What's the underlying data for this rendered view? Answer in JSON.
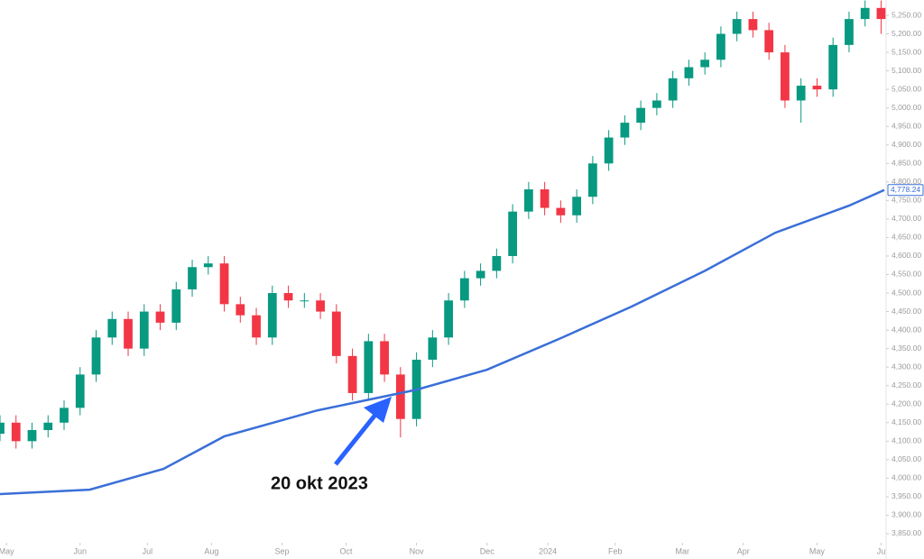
{
  "chart_data": {
    "type": "candlestick",
    "x": [
      0,
      5,
      10,
      15,
      20,
      25,
      30,
      35,
      40,
      45,
      50,
      55,
      60,
      65,
      70,
      75,
      80,
      85,
      90,
      95,
      100,
      105,
      110,
      115,
      120,
      125,
      130,
      135,
      140,
      145,
      150,
      155,
      160,
      165,
      170,
      175,
      180,
      185,
      190,
      195,
      200,
      205,
      210,
      215,
      220,
      225,
      230,
      235,
      240,
      245,
      250,
      255,
      260,
      265,
      270,
      275
    ],
    "open": [
      4120,
      4150,
      4100,
      4130,
      4150,
      4190,
      4280,
      4380,
      4430,
      4350,
      4450,
      4420,
      4510,
      4570,
      4580,
      4470,
      4440,
      4380,
      4500,
      4480,
      4480,
      4450,
      4330,
      4230,
      4370,
      4280,
      4160,
      4320,
      4380,
      4480,
      4540,
      4560,
      4600,
      4720,
      4780,
      4730,
      4710,
      4760,
      4850,
      4920,
      4960,
      5000,
      5020,
      5080,
      5110,
      5130,
      5200,
      5240,
      5210,
      5150,
      5020,
      5060,
      5050,
      5170,
      5240,
      5270
    ],
    "high": [
      4170,
      4170,
      4150,
      4170,
      4210,
      4300,
      4400,
      4450,
      4450,
      4470,
      4470,
      4530,
      4590,
      4600,
      4600,
      4490,
      4460,
      4520,
      4520,
      4500,
      4500,
      4470,
      4350,
      4390,
      4390,
      4300,
      4340,
      4400,
      4500,
      4560,
      4580,
      4620,
      4740,
      4800,
      4800,
      4750,
      4780,
      4870,
      4940,
      4980,
      5020,
      5040,
      5100,
      5130,
      5150,
      5220,
      5260,
      5260,
      5230,
      5170,
      5080,
      5080,
      5190,
      5260,
      5290,
      5290
    ],
    "low": [
      4100,
      4080,
      4080,
      4110,
      4130,
      4170,
      4260,
      4360,
      4330,
      4330,
      4400,
      4400,
      4490,
      4550,
      4450,
      4420,
      4360,
      4360,
      4460,
      4460,
      4430,
      4310,
      4210,
      4210,
      4260,
      4110,
      4140,
      4300,
      4360,
      4460,
      4520,
      4540,
      4580,
      4700,
      4710,
      4690,
      4690,
      4740,
      4830,
      4900,
      4940,
      4980,
      5000,
      5060,
      5090,
      5110,
      5180,
      5190,
      5130,
      5000,
      4960,
      5030,
      5030,
      5150,
      5220,
      5200
    ],
    "close": [
      4150,
      4100,
      4130,
      4150,
      4190,
      4280,
      4380,
      4430,
      4350,
      4450,
      4420,
      4510,
      4570,
      4580,
      4470,
      4440,
      4380,
      4500,
      4480,
      4480,
      4450,
      4330,
      4230,
      4370,
      4280,
      4160,
      4320,
      4380,
      4480,
      4540,
      4560,
      4600,
      4720,
      4780,
      4730,
      4710,
      4760,
      4850,
      4920,
      4960,
      5000,
      5020,
      5080,
      5110,
      5130,
      5200,
      5240,
      5210,
      5150,
      5020,
      5060,
      5050,
      5170,
      5240,
      5270,
      5240
    ],
    "up_color": "#089981",
    "down_color": "#f23645",
    "ma": {
      "color": "#3a6fd8",
      "x": [
        0,
        28,
        51,
        70,
        99,
        130,
        152,
        175,
        197,
        220,
        242,
        265,
        276
      ],
      "values": [
        3957,
        3969,
        4025,
        4113,
        4183,
        4239,
        4293,
        4378,
        4463,
        4560,
        4663,
        4736,
        4778.24
      ]
    },
    "last_value": {
      "value": 4778.24,
      "label": "4,778.24"
    },
    "annotation": "20 okt 2023",
    "xlim": [
      0,
      276
    ],
    "xticks": [
      {
        "value": 2,
        "label": "May"
      },
      {
        "value": 25,
        "label": "Jun"
      },
      {
        "value": 46,
        "label": "Jul"
      },
      {
        "value": 66,
        "label": "Aug"
      },
      {
        "value": 88,
        "label": "Sep"
      },
      {
        "value": 108,
        "label": "Oct"
      },
      {
        "value": 130,
        "label": "Nov"
      },
      {
        "value": 152,
        "label": "Dec"
      },
      {
        "value": 171,
        "label": "2024"
      },
      {
        "value": 192,
        "label": "Feb"
      },
      {
        "value": 213,
        "label": "Mar"
      },
      {
        "value": 232,
        "label": "Apr"
      },
      {
        "value": 255,
        "label": "May"
      },
      {
        "value": 275,
        "label": "Ju"
      }
    ],
    "ylim": [
      3830.5,
      5291.4
    ],
    "yticks": [
      {
        "value": 3850,
        "label": "3,850.00"
      },
      {
        "value": 3900,
        "label": "3,900.00"
      },
      {
        "value": 3950,
        "label": "3,950.00"
      },
      {
        "value": 4000,
        "label": "4,000.00"
      },
      {
        "value": 4050,
        "label": "4,050.00"
      },
      {
        "value": 4100,
        "label": "4,100.00"
      },
      {
        "value": 4150,
        "label": "4,150.00"
      },
      {
        "value": 4200,
        "label": "4,200.00"
      },
      {
        "value": 4250,
        "label": "4,250.00"
      },
      {
        "value": 4300,
        "label": "4,300.00"
      },
      {
        "value": 4350,
        "label": "4,350.00"
      },
      {
        "value": 4400,
        "label": "4,400.00"
      },
      {
        "value": 4450,
        "label": "4,450.00"
      },
      {
        "value": 4500,
        "label": "4,500.00"
      },
      {
        "value": 4550,
        "label": "4,550.00"
      },
      {
        "value": 4600,
        "label": "4,600.00"
      },
      {
        "value": 4650,
        "label": "4,650.00"
      },
      {
        "value": 4700,
        "label": "4,700.00"
      },
      {
        "value": 4750,
        "label": "4,750.00"
      },
      {
        "value": 4800,
        "label": "4,800.00"
      },
      {
        "value": 4850,
        "label": "4,850.00"
      },
      {
        "value": 4900,
        "label": "4,900.00"
      },
      {
        "value": 4950,
        "label": "4,950.00"
      },
      {
        "value": 5000,
        "label": "5,000.00"
      },
      {
        "value": 5050,
        "label": "5,050.00"
      },
      {
        "value": 5100,
        "label": "5,100.00"
      },
      {
        "value": 5150,
        "label": "5,150.00"
      },
      {
        "value": 5200,
        "label": "5,200.00"
      },
      {
        "value": 5250,
        "label": "5,250.00"
      }
    ]
  }
}
